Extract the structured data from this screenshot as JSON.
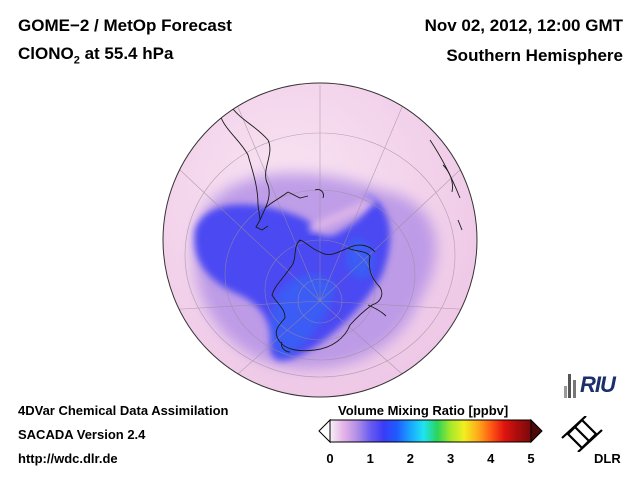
{
  "header": {
    "title_line1": "GOME−2 / MetOp Forecast",
    "title_line2_species": "ClONO",
    "title_line2_sub": "2",
    "title_line2_rest": " at 55.4 hPa",
    "datetime": "Nov 02, 2012, 12:00 GMT",
    "hemisphere": "Southern Hemisphere"
  },
  "footer": {
    "line1": "4DVar Chemical Data Assimilation",
    "line2": "SACADA Version 2.4",
    "line3": "http://wdc.dlr.de"
  },
  "colorbar": {
    "title": "Volume Mixing Ratio [ppbv]",
    "ticks": [
      "0",
      "1",
      "2",
      "3",
      "4",
      "5"
    ],
    "min": 0,
    "max": 5,
    "colors": [
      "#f7f1f7",
      "#e5b4e8",
      "#b28fe8",
      "#6a5cf0",
      "#3a3cf6",
      "#1f5cff",
      "#19a6ff",
      "#1fe4f0",
      "#2bd45a",
      "#a6e82a",
      "#f0ef20",
      "#ffae1a",
      "#ff5a14",
      "#e01410",
      "#a80c0c",
      "#7a0a0a"
    ]
  },
  "map": {
    "background_color": "#f5d5ec",
    "low_value_color": "#4a4cf2"
  },
  "logos": {
    "riu": "RIU",
    "dlr": "DLR"
  }
}
